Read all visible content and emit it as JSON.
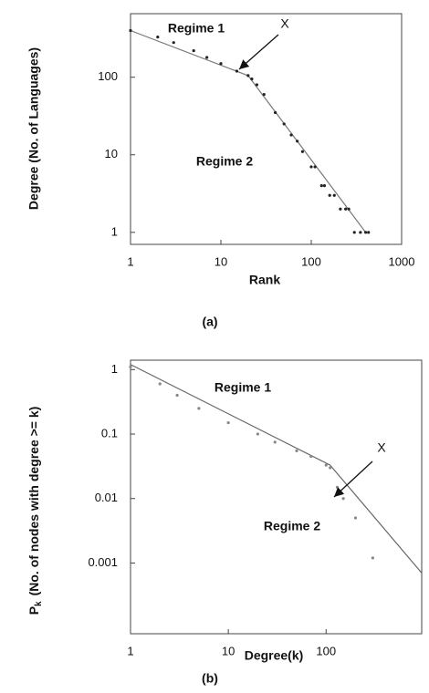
{
  "chart_data": [
    {
      "type": "scatter",
      "xlabel": "Rank",
      "ylabel": "Degree (No. of Languages)",
      "caption": "(a)",
      "log_x": true,
      "log_y": true,
      "xlim": [
        1,
        1000
      ],
      "ylim": [
        0.7,
        660
      ],
      "xticks": [
        1,
        10,
        100,
        1000
      ],
      "yticks": [
        1,
        10,
        100
      ],
      "x": [
        1,
        2,
        3,
        5,
        7,
        10,
        15,
        20,
        22,
        25,
        30,
        40,
        50,
        60,
        70,
        80,
        100,
        110,
        130,
        140,
        160,
        180,
        210,
        240,
        260,
        300,
        350,
        400,
        430
      ],
      "values": [
        400,
        330,
        280,
        220,
        180,
        150,
        120,
        105,
        95,
        80,
        60,
        35,
        25,
        18,
        15,
        11,
        7,
        7,
        4,
        4,
        3,
        3,
        2,
        2,
        2,
        1,
        1,
        1,
        1
      ],
      "color": "#222",
      "fit": [
        {
          "color": "#777",
          "x": [
            1,
            20
          ],
          "values": [
            400,
            105
          ]
        },
        {
          "color": "#777",
          "x": [
            20,
            400
          ],
          "values": [
            105,
            1
          ]
        }
      ],
      "annotations": [
        "Regime 1",
        "Regime 2",
        "X"
      ]
    },
    {
      "type": "scatter",
      "xlabel": "Degree(k)",
      "ylabel_symbol": "P",
      "ylabel_sub": "k",
      "ylabel": "(No. of nodes with degree >= k)",
      "caption": "(b)",
      "log_x": true,
      "log_y": true,
      "xlim": [
        1,
        950
      ],
      "ylim": [
        8e-05,
        1.4
      ],
      "xticks": [
        1,
        10,
        100
      ],
      "yticks": [
        1,
        0.1,
        0.01,
        0.001
      ],
      "x": [
        1,
        2,
        3,
        5,
        10,
        20,
        30,
        50,
        70,
        100,
        110,
        130,
        150,
        200,
        300
      ],
      "values": [
        1.1,
        0.6,
        0.4,
        0.25,
        0.15,
        0.1,
        0.075,
        0.055,
        0.045,
        0.033,
        0.03,
        0.015,
        0.01,
        0.005,
        0.0012
      ],
      "color": "#888",
      "fit": [
        {
          "color": "#666",
          "x": [
            1,
            110
          ],
          "values": [
            1.2,
            0.033
          ]
        },
        {
          "color": "#666",
          "x": [
            110,
            950
          ],
          "values": [
            0.033,
            0.0007
          ]
        }
      ],
      "annotations": [
        "Regime 1",
        "Regime 2",
        "X"
      ]
    }
  ]
}
